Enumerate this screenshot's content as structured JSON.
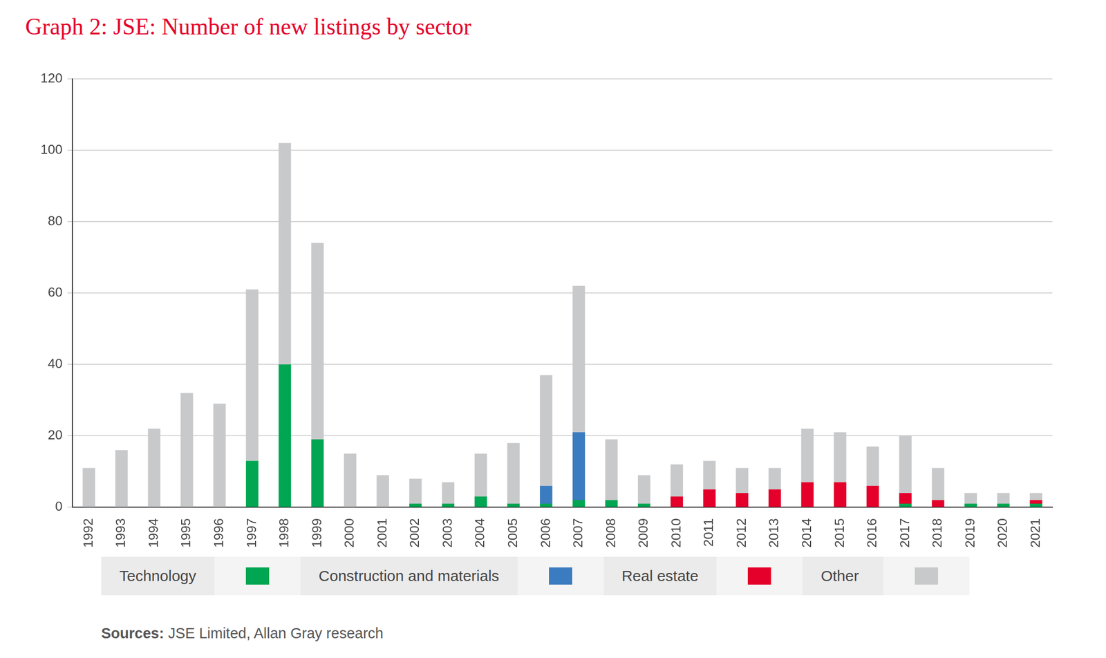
{
  "chart_data": {
    "type": "bar",
    "title": "Graph 2: JSE: Number of new listings by sector",
    "source_label": "Sources:",
    "source": "JSE Limited, Allan Gray research",
    "categories": [
      "1992",
      "1993",
      "1994",
      "1995",
      "1996",
      "1997",
      "1998",
      "1999",
      "2000",
      "2001",
      "2002",
      "2003",
      "2004",
      "2005",
      "2006",
      "2007",
      "2008",
      "2009",
      "2010",
      "2011",
      "2012",
      "2013",
      "2014",
      "2015",
      "2016",
      "2017",
      "2018",
      "2019",
      "2020",
      "2021"
    ],
    "series": [
      {
        "name": "Technology",
        "color": "#00a651",
        "values": [
          0,
          0,
          0,
          0,
          0,
          13,
          40,
          19,
          0,
          0,
          1,
          1,
          3,
          1,
          1,
          2,
          2,
          1,
          0,
          0,
          0,
          0,
          0,
          0,
          0,
          1,
          0,
          1,
          1,
          1
        ]
      },
      {
        "name": "Construction and materials",
        "color": "#3b7bbf",
        "values": [
          0,
          0,
          0,
          0,
          0,
          0,
          0,
          0,
          0,
          0,
          0,
          0,
          0,
          0,
          5,
          19,
          0,
          0,
          0,
          0,
          0,
          0,
          0,
          0,
          0,
          0,
          0,
          0,
          0,
          0
        ]
      },
      {
        "name": "Real estate",
        "color": "#e4002b",
        "values": [
          0,
          0,
          0,
          0,
          0,
          0,
          0,
          0,
          0,
          0,
          0,
          0,
          0,
          0,
          0,
          0,
          0,
          0,
          3,
          5,
          4,
          5,
          7,
          7,
          6,
          3,
          2,
          0,
          0,
          1
        ]
      },
      {
        "name": "Other",
        "color": "#c8c9cb",
        "values": [
          11,
          16,
          22,
          32,
          29,
          48,
          62,
          55,
          15,
          9,
          7,
          6,
          12,
          17,
          31,
          41,
          17,
          8,
          9,
          8,
          7,
          6,
          15,
          14,
          11,
          16,
          9,
          3,
          3,
          2
        ]
      }
    ],
    "stacked": true,
    "grid": true,
    "legend": "bottom",
    "ylim": [
      0,
      120
    ],
    "yticks": [
      0,
      20,
      40,
      60,
      80,
      100,
      120
    ]
  }
}
